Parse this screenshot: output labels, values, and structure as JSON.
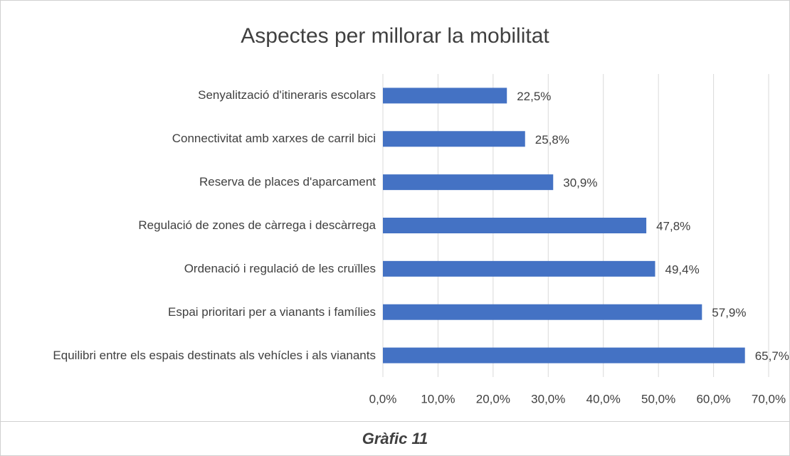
{
  "chart_data": {
    "type": "barh",
    "title": "Aspectes per millorar la mobilitat",
    "categories": [
      "Senyalització d'itineraris escolars",
      "Connectivitat amb xarxes de carril bici",
      "Reserva de places d'aparcament",
      "Regulació de zones de càrrega i descàrrega",
      "Ordenació i regulació de les cruïlles",
      "Espai prioritari per a vianants i famílies",
      "Equilibri entre els espais destinats als vehícles i als vianants"
    ],
    "values": [
      22.5,
      25.8,
      30.9,
      47.8,
      49.4,
      57.9,
      65.7
    ],
    "value_labels": [
      "22,5%",
      "25,8%",
      "30,9%",
      "47,8%",
      "49,4%",
      "57,9%",
      "65,7%"
    ],
    "color": "#4472c4",
    "xlim": [
      0,
      70
    ],
    "xticks": [
      {
        "value": 0,
        "label": "0,0%"
      },
      {
        "value": 10,
        "label": "10,0%"
      },
      {
        "value": 20,
        "label": "20,0%"
      },
      {
        "value": 30,
        "label": "30,0%"
      },
      {
        "value": 40,
        "label": "40,0%"
      },
      {
        "value": 50,
        "label": "50,0%"
      },
      {
        "value": 60,
        "label": "60,0%"
      },
      {
        "value": 70,
        "label": "70,0%"
      }
    ],
    "grid": true,
    "caption": "Gràfic 11"
  }
}
